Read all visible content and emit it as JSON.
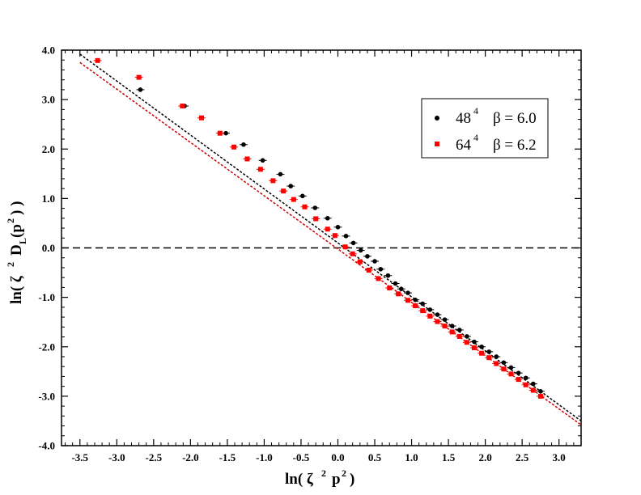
{
  "chart_data": {
    "type": "scatter",
    "xlim": [
      -3.75,
      3.3
    ],
    "ylim": [
      -4.0,
      4.0
    ],
    "x_ticks": [
      -3.5,
      -3.0,
      -2.5,
      -2.0,
      -1.5,
      -1.0,
      -0.5,
      0.0,
      0.5,
      1.0,
      1.5,
      2.0,
      2.5,
      3.0
    ],
    "x_tick_labels": [
      "-3.5",
      "-3.0",
      "-2.5",
      "-2.0",
      "-1.5",
      "-1.0",
      "-0.5",
      "0.0",
      "0.5",
      "1.0",
      "1.5",
      "2.0",
      "2.5",
      "3.0"
    ],
    "y_ticks": [
      -4.0,
      -3.0,
      -2.0,
      -1.0,
      0.0,
      1.0,
      2.0,
      3.0,
      4.0
    ],
    "y_tick_labels": [
      "-4.0",
      "-3.0",
      "-2.0",
      "-1.0",
      "0.0",
      "1.0",
      "2.0",
      "3.0",
      "4.0"
    ],
    "grid": false,
    "legend_position": "top-right",
    "horizontal_reference_line": {
      "y": 0.0,
      "style": "dashed",
      "color": "#000000"
    },
    "series": [
      {
        "label_base": "48",
        "label_exp": "4",
        "label_beta": "β = 6.0",
        "color": "#000000",
        "marker": "circle",
        "points": [
          [
            -2.68,
            3.2
          ],
          [
            -2.08,
            2.87
          ],
          [
            -1.52,
            2.32
          ],
          [
            -1.28,
            2.09
          ],
          [
            -1.02,
            1.77
          ],
          [
            -0.78,
            1.49
          ],
          [
            -0.64,
            1.25
          ],
          [
            -0.48,
            1.05
          ],
          [
            -0.31,
            0.81
          ],
          [
            -0.14,
            0.6
          ],
          [
            0.0,
            0.42
          ],
          [
            0.11,
            0.24
          ],
          [
            0.21,
            0.1
          ],
          [
            0.31,
            -0.05
          ],
          [
            0.4,
            -0.17
          ],
          [
            0.5,
            -0.27
          ],
          [
            0.58,
            -0.43
          ],
          [
            0.68,
            -0.56
          ],
          [
            0.78,
            -0.72
          ],
          [
            0.86,
            -0.83
          ],
          [
            0.95,
            -0.91
          ],
          [
            1.05,
            -1.05
          ],
          [
            1.15,
            -1.13
          ],
          [
            1.25,
            -1.25
          ],
          [
            1.35,
            -1.35
          ],
          [
            1.45,
            -1.45
          ],
          [
            1.55,
            -1.58
          ],
          [
            1.65,
            -1.66
          ],
          [
            1.75,
            -1.79
          ],
          [
            1.85,
            -1.9
          ],
          [
            1.95,
            -2.0
          ],
          [
            2.05,
            -2.1
          ],
          [
            2.15,
            -2.2
          ],
          [
            2.25,
            -2.32
          ],
          [
            2.35,
            -2.42
          ],
          [
            2.45,
            -2.53
          ],
          [
            2.55,
            -2.63
          ],
          [
            2.65,
            -2.75
          ],
          [
            2.75,
            -2.9
          ]
        ]
      },
      {
        "label_base": "64",
        "label_exp": "4",
        "label_beta": "β = 6.2",
        "color": "#ff0000",
        "marker": "square",
        "points": [
          [
            -3.26,
            3.79
          ],
          [
            -2.7,
            3.45
          ],
          [
            -2.11,
            2.87
          ],
          [
            -1.85,
            2.63
          ],
          [
            -1.6,
            2.32
          ],
          [
            -1.41,
            2.04
          ],
          [
            -1.23,
            1.8
          ],
          [
            -1.05,
            1.59
          ],
          [
            -0.88,
            1.36
          ],
          [
            -0.74,
            1.15
          ],
          [
            -0.6,
            0.98
          ],
          [
            -0.45,
            0.83
          ],
          [
            -0.3,
            0.59
          ],
          [
            -0.14,
            0.38
          ],
          [
            -0.04,
            0.25
          ],
          [
            0.1,
            0.02
          ],
          [
            0.2,
            -0.12
          ],
          [
            0.3,
            -0.28
          ],
          [
            0.42,
            -0.45
          ],
          [
            0.55,
            -0.62
          ],
          [
            0.7,
            -0.81
          ],
          [
            0.82,
            -0.93
          ],
          [
            0.95,
            -1.06
          ],
          [
            1.05,
            -1.17
          ],
          [
            1.15,
            -1.27
          ],
          [
            1.25,
            -1.38
          ],
          [
            1.35,
            -1.49
          ],
          [
            1.45,
            -1.58
          ],
          [
            1.55,
            -1.7
          ],
          [
            1.65,
            -1.79
          ],
          [
            1.75,
            -1.91
          ],
          [
            1.85,
            -2.02
          ],
          [
            1.95,
            -2.13
          ],
          [
            2.05,
            -2.22
          ],
          [
            2.15,
            -2.34
          ],
          [
            2.25,
            -2.45
          ],
          [
            2.35,
            -2.55
          ],
          [
            2.45,
            -2.66
          ],
          [
            2.55,
            -2.77
          ],
          [
            2.65,
            -2.88
          ],
          [
            2.75,
            -3.0
          ]
        ]
      }
    ],
    "fit_lines": [
      {
        "color": "#000000",
        "style": "dashed",
        "from": [
          -3.5,
          3.92
        ],
        "to": [
          3.3,
          -3.5
        ]
      },
      {
        "color": "#cc0000",
        "style": "dashed",
        "from": [
          -3.5,
          3.75
        ],
        "to": [
          3.3,
          -3.58
        ]
      }
    ]
  }
}
